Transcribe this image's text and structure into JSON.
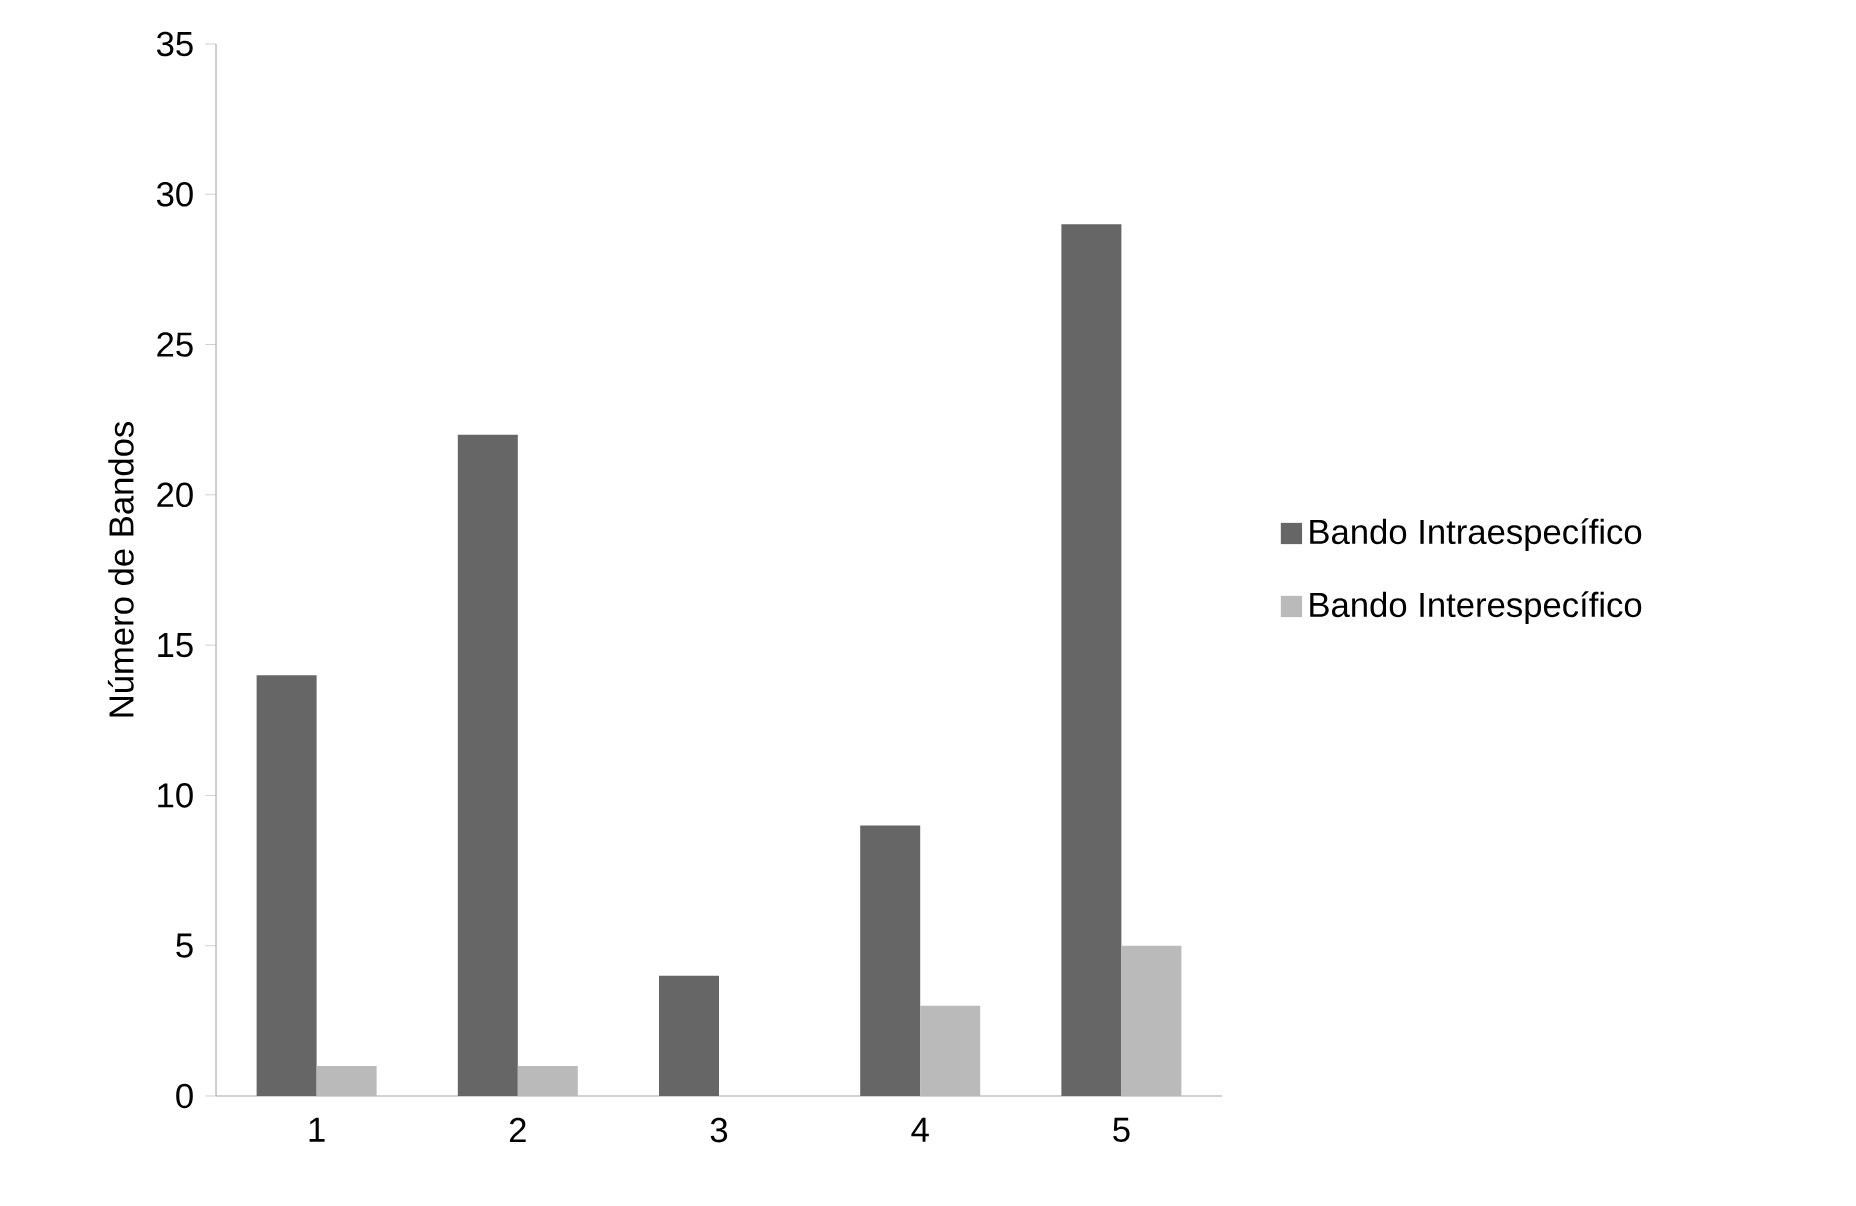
{
  "chart_data": {
    "type": "bar",
    "ylabel": "Número de Bandos",
    "categories": [
      "1",
      "2",
      "3",
      "4",
      "5"
    ],
    "series": [
      {
        "name": "Bando Intraespecífico",
        "color": "#666666",
        "values": [
          14,
          22,
          4,
          9,
          29
        ]
      },
      {
        "name": "Bando Interespecífico",
        "color": "#bababa",
        "values": [
          1,
          1,
          0,
          3,
          5
        ]
      }
    ],
    "ylim": [
      0,
      35
    ],
    "yticks": [
      0,
      5,
      10,
      15,
      20,
      25,
      30,
      35
    ],
    "grid": false,
    "legend": "right"
  }
}
